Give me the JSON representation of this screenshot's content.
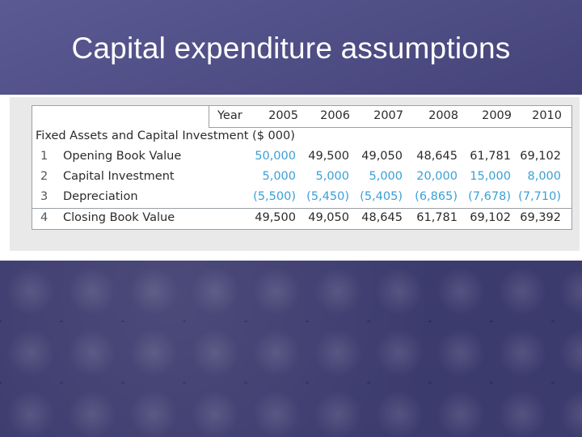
{
  "slide": {
    "title": "Capital expenditure assumptions"
  },
  "table": {
    "year_label": "Year",
    "years": [
      "2005",
      "2006",
      "2007",
      "2008",
      "2009",
      "2010"
    ],
    "header": "Fixed Assets and Capital Investment ($ 000)",
    "rows": [
      {
        "num": "1",
        "label": "Opening Book Value",
        "values": [
          "50,000",
          "49,500",
          "49,050",
          "48,645",
          "61,781",
          "69,102"
        ],
        "blue": [
          true,
          false,
          false,
          false,
          false,
          false
        ]
      },
      {
        "num": "2",
        "label": "Capital Investment",
        "values": [
          "5,000",
          "5,000",
          "5,000",
          "20,000",
          "15,000",
          "8,000"
        ],
        "blue": [
          true,
          true,
          true,
          true,
          true,
          true
        ]
      },
      {
        "num": "3",
        "label": "Depreciation",
        "values": [
          "(5,500)",
          "(5,450)",
          "(5,405)",
          "(6,865)",
          "(7,678)",
          "(7,710)"
        ],
        "blue": [
          true,
          true,
          true,
          true,
          true,
          true
        ]
      },
      {
        "num": "4",
        "label": "Closing Book Value",
        "values": [
          "49,500",
          "49,050",
          "48,645",
          "61,781",
          "69,102",
          "69,392"
        ],
        "blue": [
          false,
          false,
          false,
          false,
          false,
          false
        ]
      }
    ],
    "colors": {
      "input": "#3b9fd6",
      "text": "#2b2b2b"
    }
  }
}
